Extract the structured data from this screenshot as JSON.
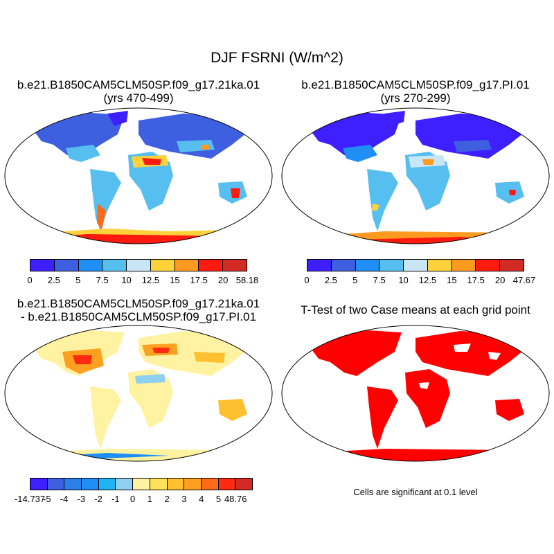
{
  "figure": {
    "title": "DJF FSRNI (W/m^2)"
  },
  "panels": [
    {
      "title_line1": "b.e21.B1850CAM5CLM50SP.f09_g17.21ka.01",
      "title_line2": "(yrs 470-499)",
      "colorbar": {
        "colors": [
          "#3d1fff",
          "#3e5fe0",
          "#1f8ff5",
          "#56bff0",
          "#c9e6f6",
          "#ffd23c",
          "#ff9a20",
          "#ff1a10",
          "#d42a26"
        ],
        "ticks": [
          "0",
          "2.5",
          "5",
          "7.5",
          "10",
          "12.5",
          "15",
          "17.5",
          "20",
          "58.18"
        ]
      }
    },
    {
      "title_line1": "b.e21.B1850CAM5CLM50SP.f09_g17.PI.01",
      "title_line2": "(yrs 270-299)",
      "colorbar": {
        "colors": [
          "#3d1fff",
          "#3e5fe0",
          "#1f8ff5",
          "#56bff0",
          "#c9e6f6",
          "#ffd23c",
          "#ff9a20",
          "#ff1a10",
          "#d42a26"
        ],
        "ticks": [
          "0",
          "2.5",
          "5",
          "7.5",
          "10",
          "12.5",
          "15",
          "17.5",
          "20",
          "47.67"
        ]
      }
    },
    {
      "title_line1": "b.e21.B1850CAM5CLM50SP.f09_g17.21ka.01",
      "title_line2": "- b.e21.B1850CAM5CLM50SP.f09_g17.PI.01",
      "colorbar": {
        "colors": [
          "#3d1fff",
          "#3e5fe0",
          "#2a7fe8",
          "#1f8ff5",
          "#21b4f2",
          "#8fd0f0",
          "#fff2a0",
          "#ffe25a",
          "#ffc030",
          "#ffa020",
          "#ff6a1a",
          "#ff2a10",
          "#d42a26"
        ],
        "ticks": [
          "-14.737",
          "-5",
          "-4",
          "-3",
          "-2",
          "-1",
          "0",
          "1",
          "2",
          "3",
          "4",
          "5",
          "48.76"
        ]
      }
    },
    {
      "title_line1": "T-Test of two Case means at each grid point",
      "note": "Cells are significant at 0.1 level"
    }
  ]
}
